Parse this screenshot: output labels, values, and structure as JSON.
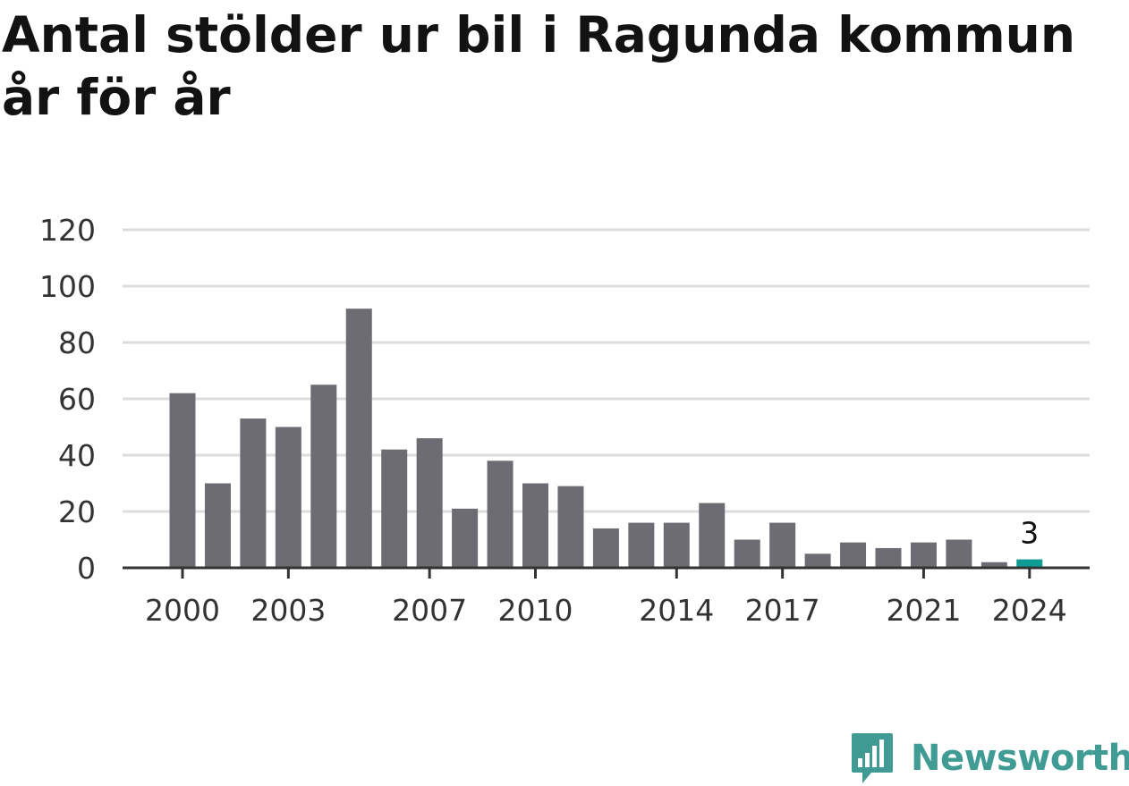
{
  "title": "Antal stölder ur bil i Ragunda kommun år för år",
  "brand": {
    "name": "Newsworthy",
    "color": "#3f9b93",
    "icon": "bar-chart-speech-bubble-icon"
  },
  "colors": {
    "bar": "#6d6c72",
    "highlight": "#0f9c94",
    "grid": "#dddddd",
    "axis": "#333333"
  },
  "chart_data": {
    "type": "bar",
    "title": "Antal stölder ur bil i Ragunda kommun år för år",
    "xlabel": "",
    "ylabel": "",
    "categories": [
      "2000",
      "2001",
      "2002",
      "2003",
      "2004",
      "2005",
      "2006",
      "2007",
      "2008",
      "2009",
      "2010",
      "2011",
      "2012",
      "2013",
      "2014",
      "2015",
      "2016",
      "2017",
      "2018",
      "2019",
      "2020",
      "2021",
      "2022",
      "2023",
      "2024"
    ],
    "values": [
      62,
      30,
      53,
      50,
      65,
      92,
      42,
      46,
      21,
      38,
      30,
      29,
      14,
      16,
      16,
      23,
      10,
      16,
      5,
      9,
      7,
      9,
      10,
      2,
      3
    ],
    "x_tick_labels": [
      "2000",
      "2003",
      "2007",
      "2010",
      "2014",
      "2017",
      "2021",
      "2024"
    ],
    "y_ticks": [
      0,
      20,
      40,
      60,
      80,
      100,
      120
    ],
    "ylim": [
      0,
      120
    ],
    "grid": true,
    "highlight_category": "2024",
    "annotation": "3"
  }
}
